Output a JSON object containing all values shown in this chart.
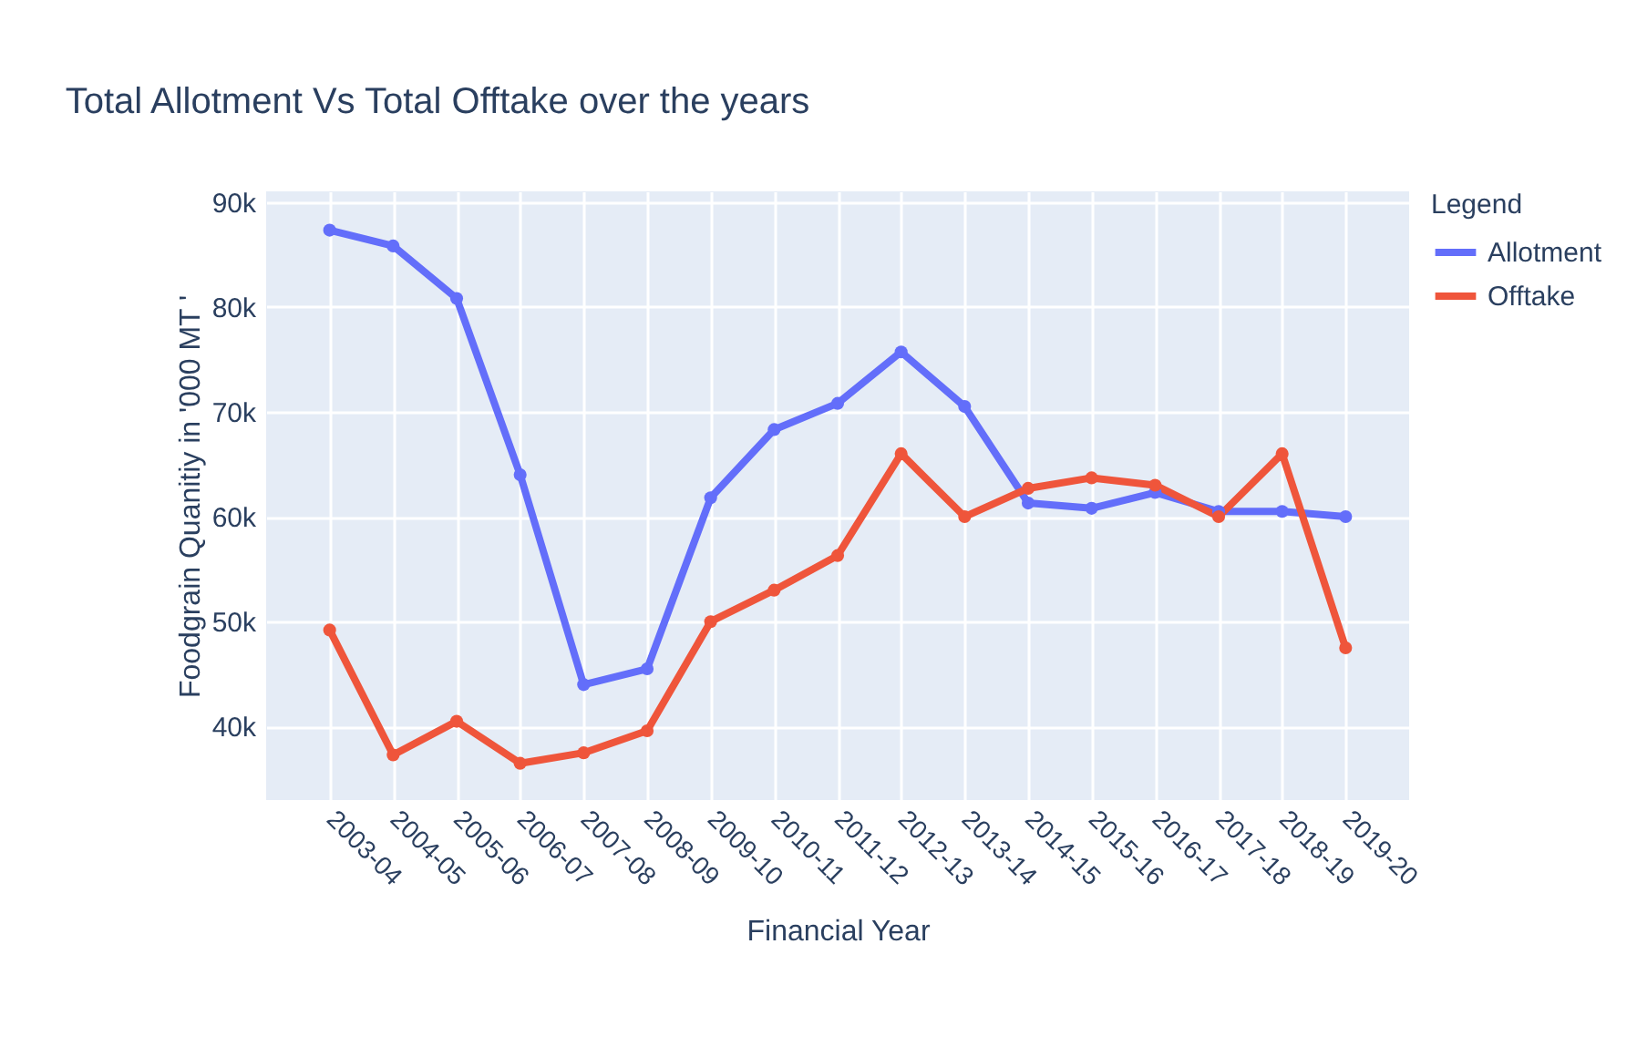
{
  "chart_data": {
    "type": "line",
    "title": "Total Allotment Vs Total Offtake over the years",
    "xlabel": "Financial Year",
    "ylabel": "Foodgrain Quanitiy in '000 MT '",
    "legend_title": "Legend",
    "categories": [
      "2003-04",
      "2004-05",
      "2005-06",
      "2006-07",
      "2007-08",
      "2008-09",
      "2009-10",
      "2010-11",
      "2011-12",
      "2012-13",
      "2013-14",
      "2014-15",
      "2015-16",
      "2016-17",
      "2017-18",
      "2018-19",
      "2019-20"
    ],
    "series": [
      {
        "name": "Allotment",
        "color": "#636efa",
        "values": [
          87300,
          85800,
          80800,
          64000,
          44000,
          45500,
          61800,
          68300,
          70800,
          75700,
          70500,
          61300,
          60800,
          62300,
          60500,
          60500,
          60000
        ]
      },
      {
        "name": "Offtake",
        "color": "#ef553b",
        "values": [
          49200,
          37300,
          40500,
          36500,
          37500,
          39600,
          50000,
          53000,
          56300,
          66000,
          60000,
          62700,
          63700,
          63000,
          60000,
          66000,
          47500
        ]
      }
    ],
    "ylim": [
      33000,
      91000
    ],
    "yticks": [
      {
        "value": 40000,
        "label": "40k"
      },
      {
        "value": 50000,
        "label": "50k"
      },
      {
        "value": 60000,
        "label": "60k"
      },
      {
        "value": 70000,
        "label": "70k"
      },
      {
        "value": 80000,
        "label": "80k"
      },
      {
        "value": 90000,
        "label": "90k"
      }
    ],
    "grid": true,
    "legend": "top right",
    "marker": "circle",
    "line_style": "solid"
  }
}
